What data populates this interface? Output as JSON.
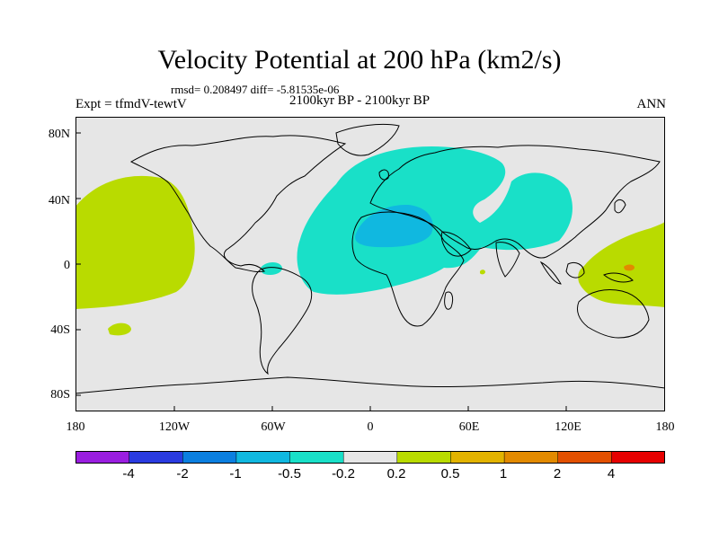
{
  "title": "Velocity Potential at 200 hPa (km2/s)",
  "stats": "rmsd= 0.208497 diff= -5.81535e-06",
  "experiment": "Expt = tfmdV-tewtV",
  "period": "2100kyr BP - 2100kyr BP",
  "season": "ANN",
  "axes": {
    "lat_labels": [
      "80N",
      "40N",
      "0",
      "40S",
      "80S"
    ],
    "lon_labels": [
      "180",
      "120W",
      "60W",
      "0",
      "60E",
      "120E",
      "180"
    ]
  },
  "colorbar": {
    "labels": [
      "-4",
      "-2",
      "-1",
      "-0.5",
      "-0.2",
      "0.2",
      "0.5",
      "1",
      "2",
      "4"
    ],
    "colors": [
      "#9a1ee0",
      "#2a3be0",
      "#0b7fe0",
      "#10b8e0",
      "#19e0c8",
      "#e6e6e6",
      "#b9db00",
      "#e2b300",
      "#e28a00",
      "#e25000",
      "#e60000"
    ]
  },
  "colors": {
    "background": "#e6e6e6",
    "negative_weak": "#19e0c8",
    "negative_mid": "#10b8e0",
    "positive_weak": "#b9db00",
    "positive_mid": "#e28a00",
    "coast": "#000000"
  }
}
